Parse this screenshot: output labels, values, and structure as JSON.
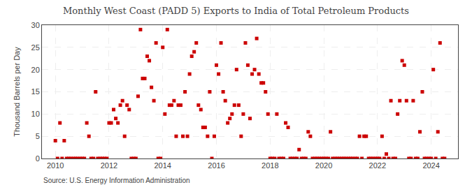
{
  "chart_data": {
    "type": "scatter",
    "title": "Monthly West Coast (PADD 5) Exports to India of Total Petroleum Products",
    "ylabel": "Thousand Barrels per Day",
    "annotations": [
      "Source: U.S. Energy Information Administration"
    ],
    "color": "#cc0000",
    "marker": "square",
    "grid": true,
    "xlim": [
      2009.5,
      2025.0
    ],
    "xticks": [
      2010,
      2012,
      2014,
      2016,
      2018,
      2020,
      2022,
      2024
    ],
    "ylim": [
      0,
      30
    ],
    "yticks": [
      0,
      5,
      10,
      15,
      20,
      25,
      30
    ],
    "x": [
      2010.0,
      2010.08,
      2010.17,
      2010.25,
      2010.33,
      2010.42,
      2010.5,
      2010.58,
      2010.67,
      2010.75,
      2010.83,
      2010.92,
      2011.0,
      2011.08,
      2011.17,
      2011.25,
      2011.33,
      2011.42,
      2011.5,
      2011.58,
      2011.67,
      2011.75,
      2011.83,
      2011.92,
      2012.0,
      2012.08,
      2012.17,
      2012.25,
      2012.33,
      2012.42,
      2012.5,
      2012.58,
      2012.67,
      2012.75,
      2012.83,
      2012.92,
      2013.0,
      2013.08,
      2013.17,
      2013.25,
      2013.33,
      2013.42,
      2013.5,
      2013.58,
      2013.67,
      2013.75,
      2013.83,
      2013.92,
      2014.0,
      2014.08,
      2014.17,
      2014.25,
      2014.33,
      2014.42,
      2014.5,
      2014.58,
      2014.67,
      2014.75,
      2014.83,
      2014.92,
      2015.0,
      2015.08,
      2015.17,
      2015.25,
      2015.33,
      2015.42,
      2015.5,
      2015.58,
      2015.67,
      2015.75,
      2015.83,
      2015.92,
      2016.0,
      2016.08,
      2016.17,
      2016.25,
      2016.33,
      2016.42,
      2016.5,
      2016.58,
      2016.67,
      2016.75,
      2016.83,
      2016.92,
      2017.0,
      2017.08,
      2017.17,
      2017.25,
      2017.33,
      2017.42,
      2017.5,
      2017.58,
      2017.67,
      2017.75,
      2017.83,
      2017.92,
      2018.0,
      2018.08,
      2018.17,
      2018.25,
      2018.33,
      2018.42,
      2018.5,
      2018.58,
      2018.67,
      2018.75,
      2018.83,
      2018.92,
      2019.0,
      2019.08,
      2019.17,
      2019.25,
      2019.33,
      2019.42,
      2019.5,
      2019.58,
      2019.67,
      2019.75,
      2019.83,
      2019.92,
      2020.0,
      2020.08,
      2020.17,
      2020.25,
      2020.33,
      2020.42,
      2020.5,
      2020.58,
      2020.67,
      2020.75,
      2020.83,
      2020.92,
      2021.0,
      2021.08,
      2021.17,
      2021.25,
      2021.33,
      2021.42,
      2021.5,
      2021.58,
      2021.67,
      2021.75,
      2021.83,
      2021.92,
      2022.0,
      2022.08,
      2022.17,
      2022.25,
      2022.33,
      2022.42,
      2022.5,
      2022.58,
      2022.67,
      2022.75,
      2022.83,
      2022.92,
      2023.0,
      2023.08,
      2023.17,
      2023.25,
      2023.33,
      2023.42,
      2023.5,
      2023.58,
      2023.67,
      2023.75,
      2023.83,
      2023.92,
      2024.0,
      2024.08,
      2024.17,
      2024.25,
      2024.33,
      2024.42,
      2024.5
    ],
    "values": [
      4,
      0,
      8,
      0,
      4,
      0,
      0,
      0,
      0,
      0,
      0,
      0,
      0,
      0,
      8,
      5,
      0,
      0,
      15,
      0,
      0,
      0,
      0,
      0,
      8,
      8,
      11,
      9,
      8,
      12,
      13,
      5,
      12,
      11,
      0,
      0,
      0,
      14,
      29,
      18,
      18,
      23,
      22,
      16,
      13,
      26,
      0,
      0,
      25,
      10,
      29,
      12,
      12,
      13,
      5,
      12,
      12,
      5,
      15,
      5,
      19,
      23,
      24,
      26,
      12,
      11,
      7,
      7,
      5,
      15,
      0,
      5,
      21,
      19,
      26,
      15,
      13,
      8,
      9,
      10,
      12,
      20,
      12,
      5,
      10,
      26,
      21,
      9,
      19,
      20,
      27,
      19,
      17,
      17,
      15,
      10,
      0,
      0,
      0,
      10,
      0,
      0,
      0,
      8,
      7,
      0,
      0,
      0,
      0,
      2,
      0,
      0,
      0,
      6,
      5,
      0,
      0,
      0,
      0,
      0,
      0,
      0,
      0,
      6,
      0,
      0,
      0,
      0,
      0,
      0,
      0,
      0,
      0,
      0,
      0,
      0,
      5,
      0,
      5,
      5,
      0,
      0,
      0,
      0,
      0,
      0,
      5,
      0,
      1,
      0,
      13,
      0,
      0,
      10,
      13,
      22,
      21,
      13,
      0,
      0,
      13,
      0,
      0,
      6,
      15,
      0,
      0,
      0,
      0,
      20,
      0,
      6,
      26,
      0,
      0
    ]
  }
}
